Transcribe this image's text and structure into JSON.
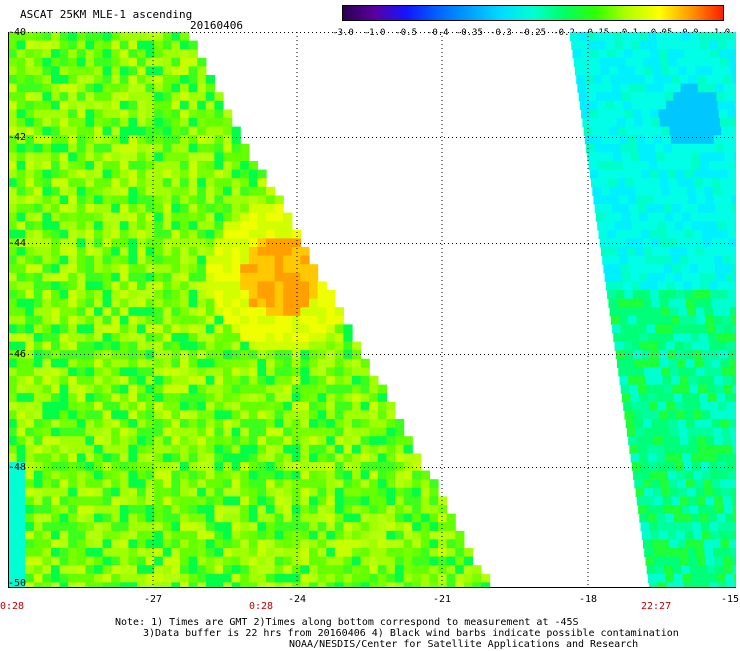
{
  "header": {
    "title": "ASCAT 25KM MLE-1 ascending",
    "date": "20160406"
  },
  "colorbar": {
    "labels": [
      "-3.0",
      "-1.0",
      "-0.5",
      "-0.4",
      "-0.35",
      "-0.3",
      "-0.25",
      "-0.2",
      "-0.15",
      "-0.1",
      "-0.05",
      "0.0",
      "1.0"
    ],
    "colors": [
      "#2a0050",
      "#5a00a0",
      "#1414ff",
      "#0064ff",
      "#00a0ff",
      "#00dcff",
      "#00ffd2",
      "#00ff64",
      "#32ff00",
      "#b4ff00",
      "#ffff00",
      "#ff9600",
      "#ff1e00"
    ]
  },
  "axes": {
    "y_ticks": [
      "-40",
      "-42",
      "-44",
      "-46",
      "-48",
      "-50"
    ],
    "x_ticks": [
      "-27",
      "-24",
      "-21",
      "-18",
      "-15"
    ]
  },
  "time_labels": [
    "0:28",
    "0:28",
    "22:27"
  ],
  "notes": {
    "line1": "Note: 1) Times are GMT 2)Times along bottom correspond to measurement at -45S",
    "line2": "3)Data buffer is 22 hrs from 20160406 4) Black wind barbs indicate possible contamination",
    "line3": "NOAA/NESDIS/Center for Satellite Applications and Research"
  }
}
